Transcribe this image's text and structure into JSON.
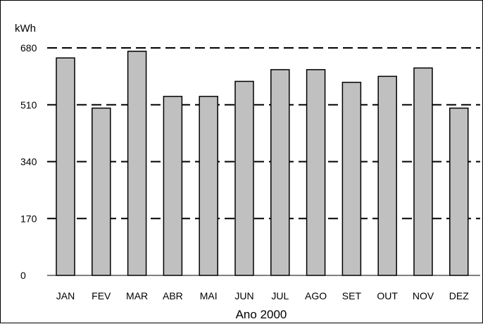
{
  "chart_data": {
    "type": "bar",
    "ylabel": "kWh",
    "xlabel": "Ano 2000",
    "y_tick_labels": [
      "0",
      "170",
      "340",
      "510",
      "680"
    ],
    "y_tick_values": [
      0,
      170,
      340,
      510,
      680
    ],
    "ylim": [
      0,
      680
    ],
    "grid": true,
    "grid_style": "dashed",
    "categories": [
      "JAN",
      "FEV",
      "MAR",
      "ABR",
      "MAI",
      "JUN",
      "JUL",
      "AGO",
      "SET",
      "OUT",
      "NOV",
      "DEZ"
    ],
    "values": [
      650,
      500,
      670,
      535,
      535,
      580,
      615,
      615,
      577,
      595,
      620,
      500
    ],
    "colors": {
      "bar_fill": "#c0c0c0",
      "bar_stroke": "#000000",
      "grid": "#000000"
    }
  }
}
